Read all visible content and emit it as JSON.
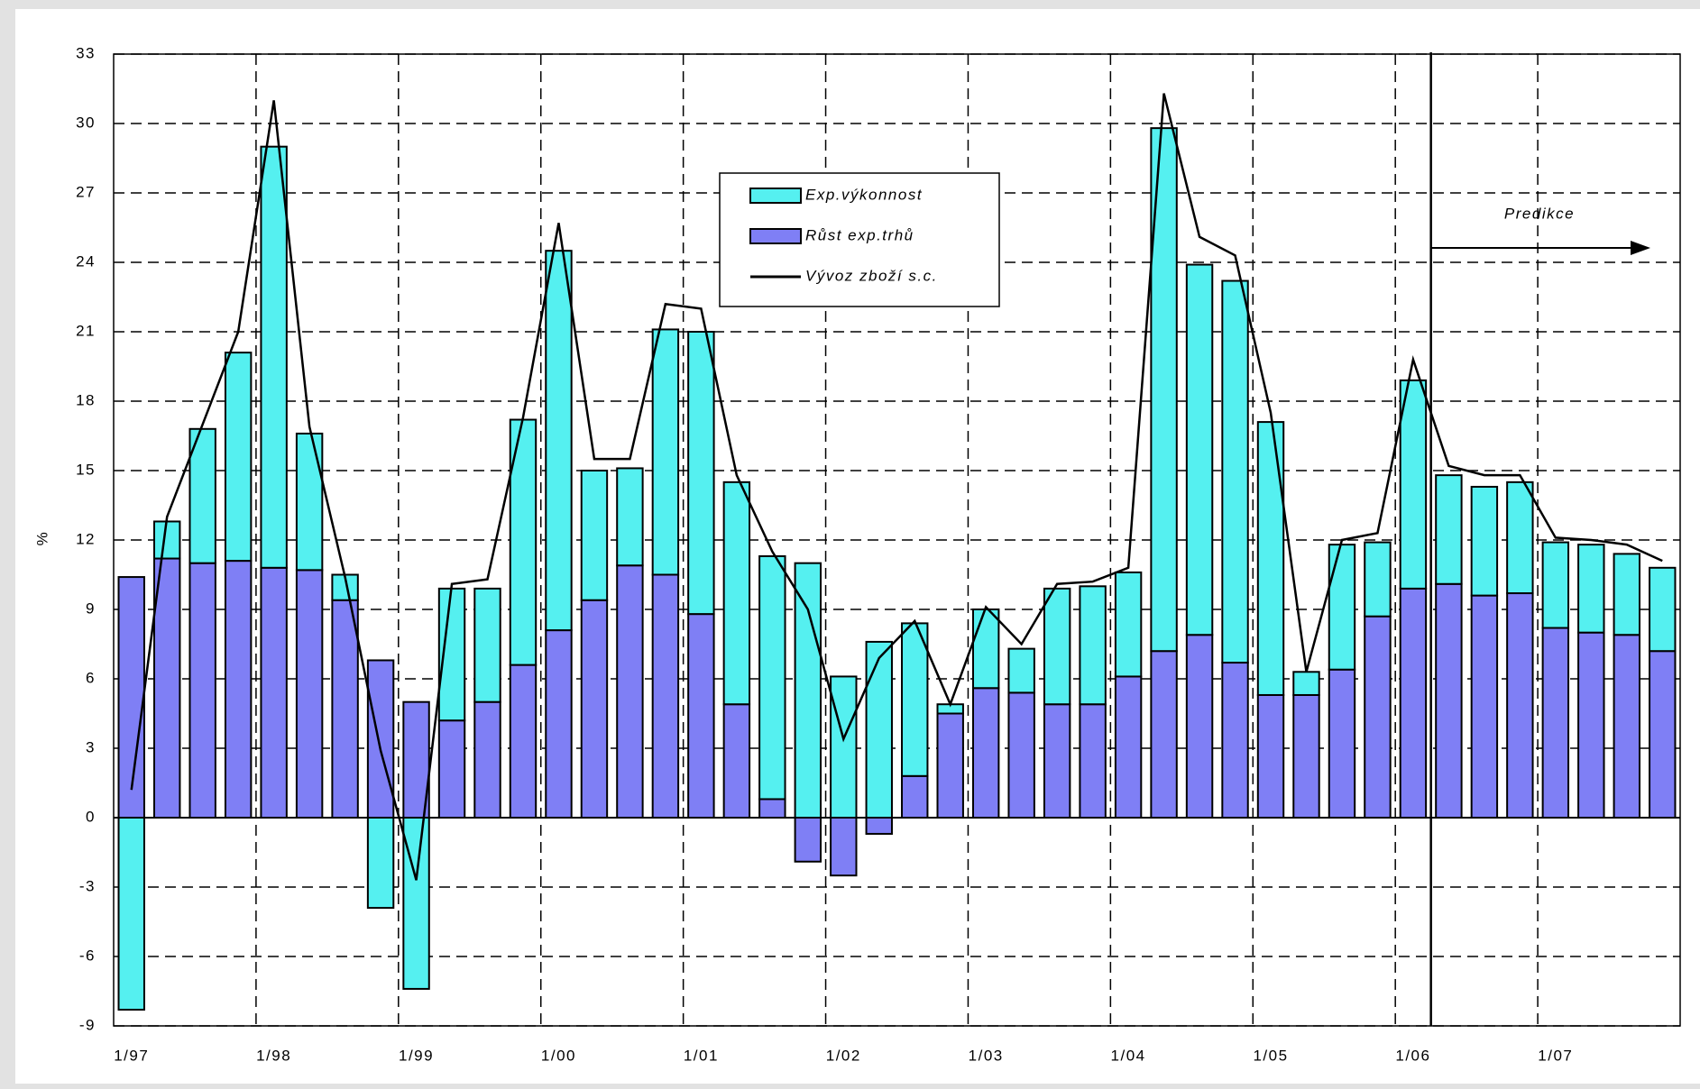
{
  "chart_data": {
    "type": "bar",
    "stacked": true,
    "y_label": "%",
    "categories": [
      "1/97",
      null,
      null,
      null,
      "1/98",
      null,
      null,
      null,
      "1/99",
      null,
      null,
      null,
      "1/00",
      null,
      null,
      null,
      "1/01",
      null,
      null,
      null,
      "1/02",
      null,
      null,
      null,
      "1/03",
      null,
      null,
      null,
      "1/04",
      null,
      null,
      null,
      "1/05",
      null,
      null,
      null,
      "1/06",
      null,
      null,
      null,
      "1/07",
      null,
      null,
      null
    ],
    "series": [
      {
        "name": "Exp.výkonnost",
        "type": "bar",
        "color": "#55f0f0",
        "values": [
          -8.3,
          1.6,
          5.8,
          9.0,
          18.2,
          5.9,
          1.1,
          -3.9,
          -7.4,
          5.7,
          4.9,
          10.6,
          16.4,
          5.6,
          4.2,
          10.6,
          12.2,
          9.6,
          10.5,
          11.0,
          6.1,
          7.6,
          6.6,
          0.4,
          3.4,
          1.9,
          5.0,
          5.1,
          4.5,
          22.6,
          16.0,
          16.5,
          11.8,
          1.0,
          5.4,
          3.2,
          9.0,
          4.7,
          4.7,
          4.8,
          3.7,
          3.8,
          3.5,
          3.6
        ]
      },
      {
        "name": "Růst exp.trhů",
        "type": "bar",
        "color": "#7f7ff5",
        "values": [
          10.4,
          11.2,
          11.0,
          11.1,
          10.8,
          10.7,
          9.4,
          6.8,
          5.0,
          4.2,
          5.0,
          6.6,
          8.1,
          9.4,
          10.9,
          10.5,
          8.8,
          4.9,
          0.8,
          -1.9,
          -2.5,
          -0.7,
          1.8,
          4.5,
          5.6,
          5.4,
          4.9,
          4.9,
          6.1,
          7.2,
          7.9,
          6.7,
          5.3,
          5.3,
          6.4,
          8.7,
          9.9,
          10.1,
          9.6,
          9.7,
          8.2,
          8.0,
          7.9,
          7.2
        ]
      },
      {
        "name": "Vývoz zboží s.c.",
        "type": "line",
        "color": "#000000",
        "values": [
          1.2,
          13.0,
          17.0,
          21.0,
          31.0,
          16.9,
          10.4,
          2.9,
          -2.7,
          10.1,
          10.3,
          17.3,
          25.7,
          15.5,
          15.5,
          22.2,
          22.0,
          14.8,
          11.5,
          9.0,
          3.4,
          6.9,
          8.5,
          4.9,
          9.1,
          7.5,
          10.1,
          10.2,
          10.8,
          31.3,
          25.1,
          24.3,
          17.5,
          6.3,
          12.0,
          12.3,
          19.8,
          15.2,
          14.8,
          14.8,
          12.1,
          12.0,
          11.8,
          11.1
        ]
      }
    ],
    "annotation": "Predikce",
    "ylim": [
      -9,
      33
    ],
    "yticks": [
      -9,
      -6,
      -3,
      0,
      3,
      6,
      9,
      12,
      15,
      18,
      21,
      24,
      27,
      30,
      33
    ],
    "grid": true,
    "legend": "top-center"
  }
}
